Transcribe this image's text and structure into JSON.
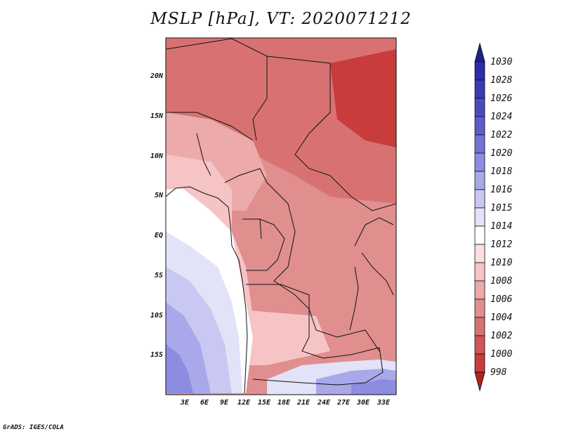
{
  "title": "MSLP [hPa], VT: 2020071212",
  "credit": "GrADS: IGES/COLA",
  "lat_labels": [
    "20N",
    "15N",
    "10N",
    "5N",
    "EQ",
    "5S",
    "10S",
    "15S"
  ],
  "lon_labels": [
    "3E",
    "6E",
    "9E",
    "12E",
    "15E",
    "18E",
    "21E",
    "24E",
    "27E",
    "30E",
    "33E"
  ],
  "colorbar": {
    "levels": [
      "1030",
      "1028",
      "1026",
      "1024",
      "1022",
      "1020",
      "1018",
      "1016",
      "1015",
      "1014",
      "1012",
      "1010",
      "1008",
      "1006",
      "1004",
      "1002",
      "1000",
      "998"
    ],
    "colors": [
      "#1f1f8c",
      "#2c2ca8",
      "#3a3ab4",
      "#4a4ac0",
      "#5c5ccc",
      "#7272d6",
      "#8c8ce0",
      "#a8a8ea",
      "#c8c8f2",
      "#e2e2f8",
      "#ffffff",
      "#fbdede",
      "#f6c4c4",
      "#ecaaaa",
      "#e08e8e",
      "#d87272",
      "#d05656",
      "#c83c3c",
      "#b82020"
    ]
  },
  "field_colors": {
    "p998": "#c83c3c",
    "p1000": "#d05656",
    "p1002": "#d87272",
    "p1004": "#e08e8e",
    "p1006": "#ecaaaa",
    "p1008": "#f6c4c4",
    "p1010": "#fbdede",
    "p1012": "#ffffff",
    "p1014": "#e2e2f8",
    "p1015": "#c8c8f2",
    "p1016": "#a8a8ea",
    "p1018": "#8c8ce0"
  }
}
